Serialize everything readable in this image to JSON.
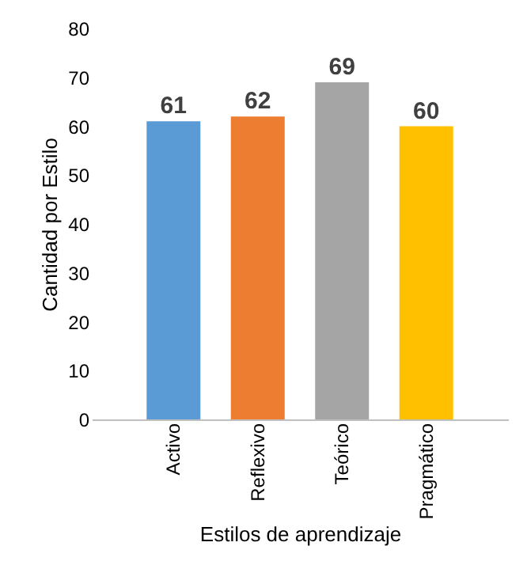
{
  "chart_data": {
    "type": "bar",
    "xlabel": "Estilos de aprendizaje",
    "ylabel": "Cantidad por Estilo",
    "categories": [
      "Activo",
      "Reflexivo",
      "Teórico",
      "Pragmático"
    ],
    "values": [
      61,
      62,
      69,
      60
    ],
    "colors": [
      "#5b9bd5",
      "#ed7d31",
      "#a5a5a5",
      "#ffc000"
    ],
    "ylim": [
      0,
      80
    ],
    "yticks": [
      0,
      10,
      20,
      30,
      40,
      50,
      60,
      70,
      80
    ],
    "grid": false,
    "data_labels": true
  }
}
